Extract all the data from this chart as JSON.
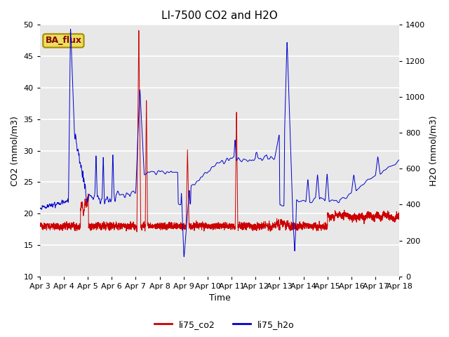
{
  "title": "LI-7500 CO2 and H2O",
  "xlabel": "Time",
  "ylabel_left": "CO2 (mmol/m3)",
  "ylabel_right": "H2O (mmol/m3)",
  "ylim_left": [
    10,
    50
  ],
  "ylim_right": [
    0,
    1400
  ],
  "yticks_left": [
    10,
    15,
    20,
    25,
    30,
    35,
    40,
    45,
    50
  ],
  "yticks_right": [
    0,
    200,
    400,
    600,
    800,
    1000,
    1200,
    1400
  ],
  "xticklabels": [
    "Apr 3",
    "Apr 4",
    "Apr 5",
    "Apr 6",
    "Apr 7",
    "Apr 8",
    "Apr 9",
    "Apr 10",
    "Apr 11",
    "Apr 12",
    "Apr 13",
    "Apr 14",
    "Apr 15",
    "Apr 16",
    "Apr 17",
    "Apr 18"
  ],
  "color_co2": "#cc0000",
  "color_h2o": "#0000cc",
  "legend_label_co2": "li75_co2",
  "legend_label_h2o": "li75_h2o",
  "text_box_label": "BA_flux",
  "text_box_bg": "#e8e060",
  "text_box_border": "#aa8800",
  "background_color": "#e8e8e8",
  "grid_color": "#ffffff",
  "title_fontsize": 11,
  "axis_fontsize": 9,
  "tick_fontsize": 8
}
